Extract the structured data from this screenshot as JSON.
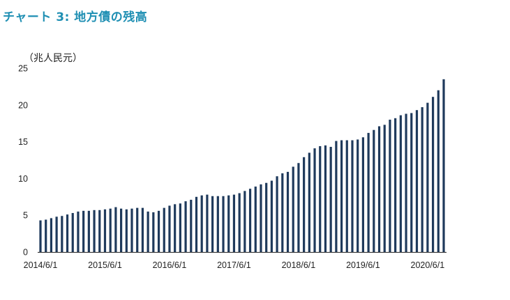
{
  "title": "チャート 3: 地方債の残高",
  "colors": {
    "title": "#1f8fb3",
    "bar": "#1f3a5c",
    "axis": "#222222"
  },
  "chart_data": {
    "type": "bar",
    "title": "チャート 3: 地方債の残高",
    "ylabel": "（兆人民元）",
    "xlabel": "",
    "ylim": [
      0,
      25
    ],
    "yticks": [
      0,
      5,
      10,
      15,
      20,
      25
    ],
    "xtick_labels": [
      "2014/6/1",
      "2015/6/1",
      "2016/6/1",
      "2017/6/1",
      "2018/6/1",
      "2019/6/1",
      "2020/6/1"
    ],
    "grid": false,
    "legend": "none",
    "values": [
      4.3,
      4.4,
      4.6,
      4.8,
      4.9,
      5.1,
      5.3,
      5.5,
      5.6,
      5.6,
      5.7,
      5.7,
      5.8,
      5.9,
      6.1,
      5.9,
      5.8,
      5.9,
      6.0,
      6.0,
      5.5,
      5.4,
      5.6,
      6.0,
      6.3,
      6.5,
      6.6,
      6.9,
      7.1,
      7.5,
      7.7,
      7.8,
      7.6,
      7.6,
      7.6,
      7.7,
      7.8,
      8.0,
      8.3,
      8.6,
      8.9,
      9.2,
      9.4,
      9.7,
      10.3,
      10.7,
      10.9,
      11.6,
      12.1,
      12.9,
      13.5,
      14.1,
      14.4,
      14.5,
      14.3,
      15.1,
      15.2,
      15.2,
      15.2,
      15.3,
      15.6,
      16.2,
      16.6,
      17.1,
      17.3,
      18.0,
      18.2,
      18.6,
      18.8,
      18.9,
      19.3,
      19.7,
      20.3,
      21.1,
      22.0,
      23.5
    ]
  }
}
